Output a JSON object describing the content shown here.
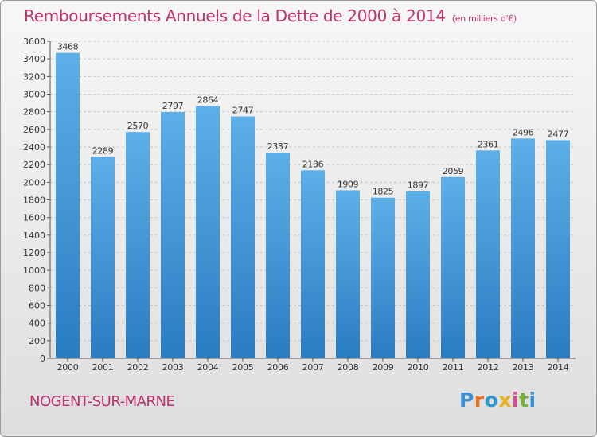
{
  "title": "Remboursements Annuels de la Dette de 2000 à 2014",
  "unit_note": "(en milliers d'€)",
  "commune": "NOGENT-SUR-MARNE",
  "logo": {
    "letters": [
      "P",
      "r",
      "o",
      "x",
      "i",
      "t",
      "i"
    ],
    "colors": [
      "#3a8fd6",
      "#e8731e",
      "#2c98cf",
      "#e7b21c",
      "#d94b8d",
      "#74b23a",
      "#3a8fd6"
    ]
  },
  "colors": {
    "bar_top": "#5dafe8",
    "bar_bottom": "#2a7cc1",
    "title": "#c0306c"
  },
  "chart_data": {
    "type": "bar",
    "categories": [
      "2000",
      "2001",
      "2002",
      "2003",
      "2004",
      "2005",
      "2006",
      "2007",
      "2008",
      "2009",
      "2010",
      "2011",
      "2012",
      "2013",
      "2014"
    ],
    "values": [
      3468,
      2289,
      2570,
      2797,
      2864,
      2747,
      2337,
      2136,
      1909,
      1825,
      1897,
      2059,
      2361,
      2496,
      2477
    ],
    "yticks": [
      0,
      200,
      400,
      600,
      800,
      1000,
      1200,
      1400,
      1600,
      1800,
      2000,
      2200,
      2400,
      2600,
      2800,
      3000,
      3200,
      3400,
      3600
    ],
    "ylim": [
      0,
      3600
    ],
    "grid": true,
    "title": "Remboursements Annuels de la Dette de 2000 à 2014",
    "xlabel": "",
    "ylabel": ""
  }
}
